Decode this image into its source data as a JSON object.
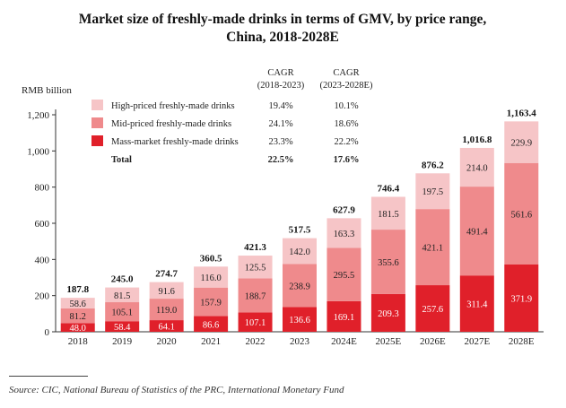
{
  "chart_data": {
    "type": "bar",
    "stacked": true,
    "title_lines": [
      "Market size of freshly-made drinks in terms of GMV, by price range,",
      "China, 2018-2028E"
    ],
    "ylabel": "RMB billion",
    "ylim": [
      0,
      1200
    ],
    "yticks": [
      "0",
      "200",
      "400",
      "600",
      "800",
      "1,000",
      "1,200"
    ],
    "ytick_values": [
      0,
      200,
      400,
      600,
      800,
      1000,
      1200
    ],
    "categories": [
      "2018",
      "2019",
      "2020",
      "2021",
      "2022",
      "2023",
      "2024E",
      "2025E",
      "2026E",
      "2027E",
      "2028E"
    ],
    "series": [
      {
        "name": "Mass-market freshly-made drinks",
        "color": "#e0202a",
        "values": [
          48.0,
          58.4,
          64.1,
          86.6,
          107.1,
          136.6,
          169.1,
          209.3,
          257.6,
          311.4,
          371.9
        ],
        "labels": [
          "48.0",
          "58.4",
          "64.1",
          "86.6",
          "107.1",
          "136.6",
          "169.1",
          "209.3",
          "257.6",
          "311.4",
          "371.9"
        ]
      },
      {
        "name": "Mid-priced freshly-made drinks",
        "color": "#ef8a8c",
        "values": [
          81.2,
          105.1,
          119.0,
          157.9,
          188.7,
          238.9,
          295.5,
          355.6,
          421.1,
          491.4,
          561.6
        ],
        "labels": [
          "81.2",
          "105.1",
          "119.0",
          "157.9",
          "188.7",
          "238.9",
          "295.5",
          "355.6",
          "421.1",
          "491.4",
          "561.6"
        ]
      },
      {
        "name": "High-priced freshly-made drinks",
        "color": "#f6c5c7",
        "values": [
          58.6,
          81.5,
          91.6,
          116.0,
          125.5,
          142.0,
          163.3,
          181.5,
          197.5,
          214.0,
          229.9
        ],
        "labels": [
          "58.6",
          "81.5",
          "91.6",
          "116.0",
          "125.5",
          "142.0",
          "163.3",
          "181.5",
          "197.5",
          "214.0",
          "229.9"
        ]
      }
    ],
    "totals": [
      187.8,
      245.0,
      274.7,
      360.5,
      421.3,
      517.5,
      627.9,
      746.4,
      876.2,
      1016.8,
      1163.4
    ],
    "total_labels": [
      "187.8",
      "245.0",
      "274.7",
      "360.5",
      "421.3",
      "517.5",
      "627.9",
      "746.4",
      "876.2",
      "1,016.8",
      "1,163.4"
    ],
    "legend": {
      "placement": "top-left",
      "cagr_headers": [
        {
          "line1": "CAGR",
          "line2": "(2018-2023)"
        },
        {
          "line1": "CAGR",
          "line2": "(2023-2028E)"
        }
      ],
      "rows": [
        {
          "label": "High-priced freshly-made drinks",
          "color": "#f6c5c7",
          "cagr_1": "19.4%",
          "cagr_2": "10.1%"
        },
        {
          "label": "Mid-priced freshly-made drinks",
          "color": "#ef8a8c",
          "cagr_1": "24.1%",
          "cagr_2": "18.6%"
        },
        {
          "label": "Mass-market freshly-made drinks",
          "color": "#e0202a",
          "cagr_1": "23.3%",
          "cagr_2": "22.2%"
        },
        {
          "label": "Total",
          "color": "",
          "cagr_1": "22.5%",
          "cagr_2": "17.6%"
        }
      ]
    }
  },
  "source": "Source: CIC, National Bureau of Statistics of the PRC, International Monetary Fund"
}
